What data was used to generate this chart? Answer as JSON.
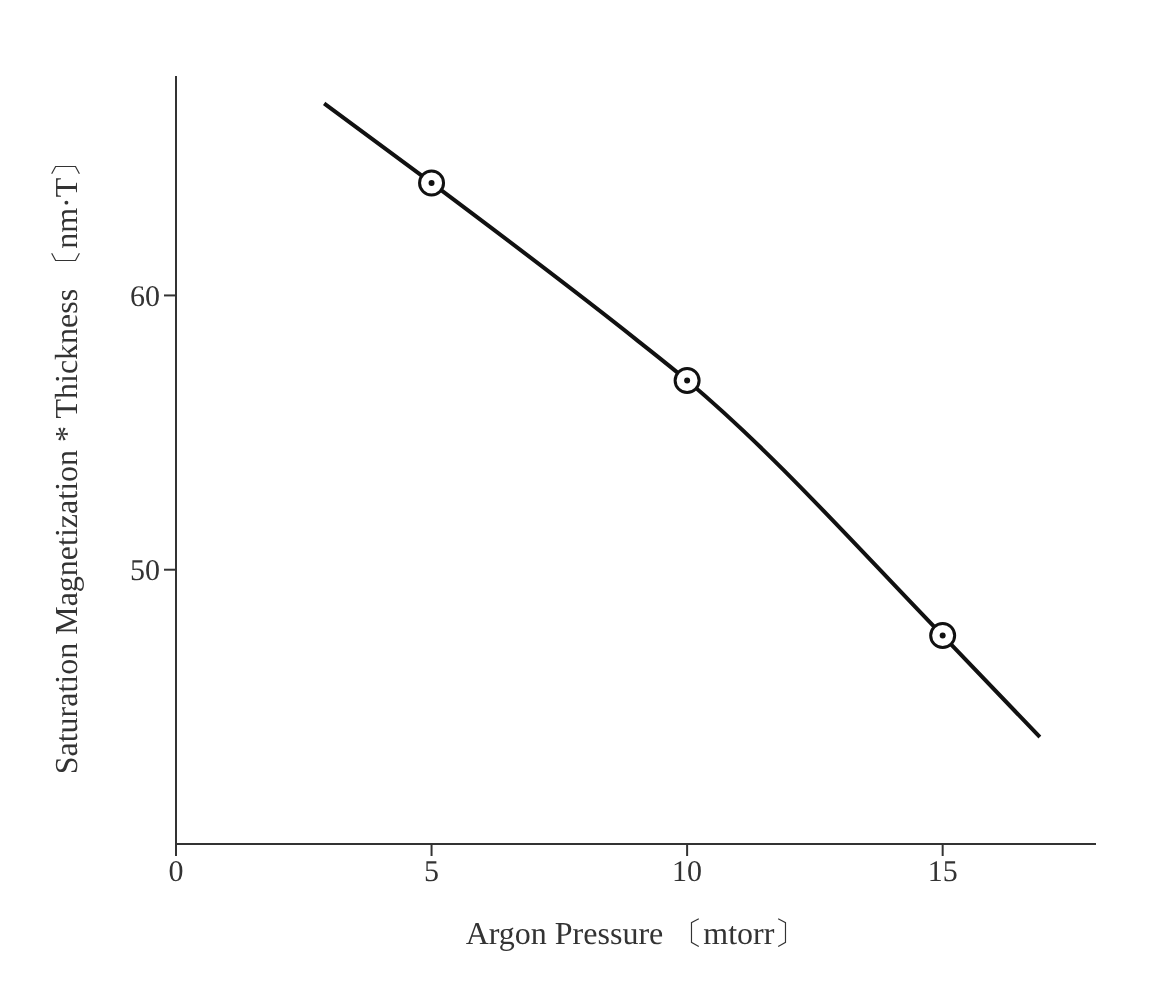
{
  "chart_data": {
    "type": "line",
    "xlabel": "Argon Pressure 〔mtorr〕",
    "ylabel": "Saturation Magnetization * Thickness 〔nm·T〕",
    "xlim": [
      0,
      18
    ],
    "xticks": [
      0,
      5,
      10,
      15
    ],
    "ylim": [
      40,
      68
    ],
    "yticks": [
      50,
      60
    ],
    "grid": false,
    "series": [
      {
        "color": "#111111",
        "x": [
          2.9,
          5,
          9,
          10,
          15,
          16.9
        ],
        "values": [
          67.0,
          64.1,
          58.4,
          56.9,
          47.6,
          43.9
        ]
      },
      {
        "type": "scatter",
        "color": "#111111",
        "marker": "circle",
        "x": [
          5,
          10,
          15
        ],
        "values": [
          64.1,
          56.9,
          47.6
        ]
      }
    ]
  }
}
